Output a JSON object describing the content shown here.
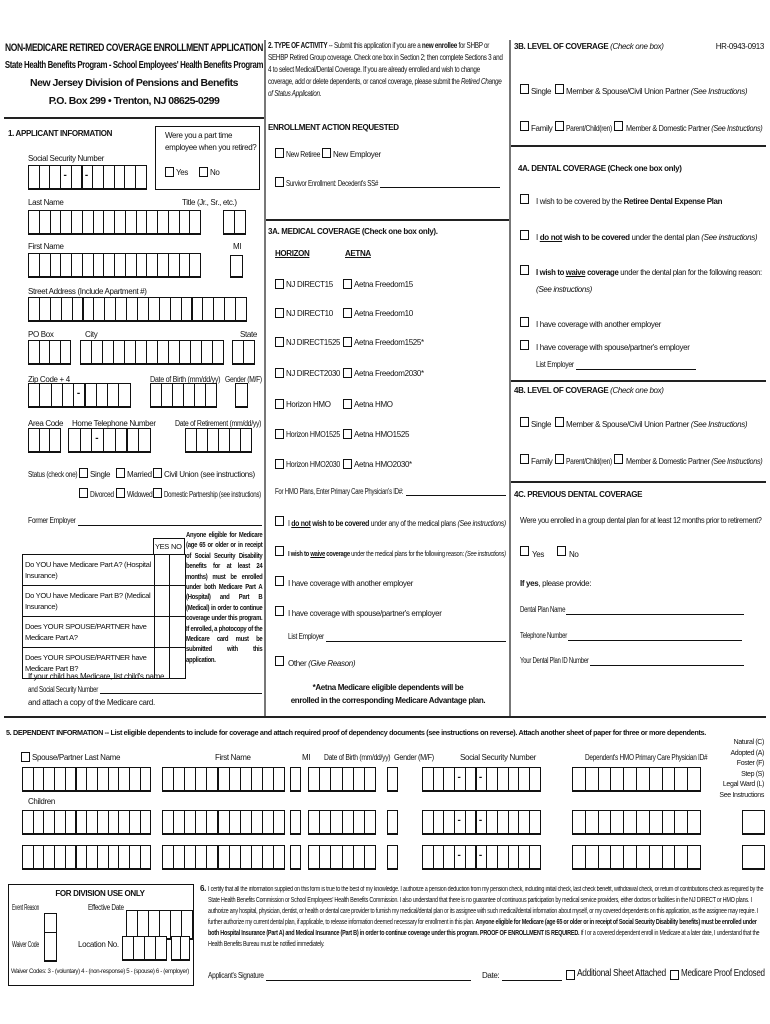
{
  "header": {
    "title": "NON-MEDICARE RETIRED COVERAGE ENROLLMENT APPLICATION",
    "program": "State Health Benefits Program - School Employees' Health Benefits Program",
    "division": "New Jersey Division of Pensions and Benefits",
    "address": "P.O. Box 299 • Trenton, NJ 08625-0299",
    "form_code": "HR-0943-0913"
  },
  "s1": {
    "title": "1. APPLICANT INFORMATION",
    "part_time_q": "Were you a part time employee when you retired?",
    "yes": "Yes",
    "no": "No",
    "ssn": "Social Security Number",
    "last_name": "Last Name",
    "title_field": "Title (Jr., Sr., etc.)",
    "first_name": "First Name",
    "mi": "MI",
    "street": "Street Address (Include Apartment #)",
    "po_box": "PO Box",
    "city": "City",
    "state": "State",
    "zip": "Zip Code + 4",
    "dob": "Date of Birth (mm/dd/yy)",
    "gender": "Gender (M/F)",
    "area_code": "Area Code",
    "phone": "Home Telephone Number",
    "retirement": "Date of Retirement (mm/dd/yy)",
    "status": "Status (check one)",
    "status_options": [
      "Single",
      "Married",
      "Civil Union (see instructions)",
      "Divorced",
      "Widowed",
      "Domestic Partnership (see instructions)"
    ],
    "former_employer": "Former Employer",
    "medicare_yes": "YES",
    "medicare_no": "NO",
    "medicare_questions": [
      "Do YOU have Medicare Part A? (Hospital Insurance)",
      "Do YOU have Medicare Part B? (Medical Insurance)",
      "Does YOUR SPOUSE/PARTNER have Medicare Part A?",
      "Does YOUR SPOUSE/PARTNER have Medicare Part B?"
    ],
    "medicare_note": "Anyone eligible for Medicare (age 65 or older or in receipt of Social Security Disability benefits for at least 24 months) must be enrolled under both Medicare Part A (Hospital) and Part B (Medical) in order to continue coverage under this program. If enrolled, a photocopy of the Medicare card must be submitted with this application.",
    "child_1": "If your child has Medicare, list child's name",
    "child_2": "and Social Security Number",
    "child_3": "and attach a copy of the Medicare card."
  },
  "s2": {
    "title": "2. TYPE OF ACTIVITY",
    "text_1": " -- Submit this application if you are a ",
    "bold_1": "new enrollee",
    "text_2": " for SHBP or SEHBP Retired Group coverage. Check one box in Section 2; then complete Sections 3 and 4 to select Medical/Dental Coverage. If you are already enrolled and wish to change coverage, add or delete dependents, or cancel coverage, please submit the ",
    "italic_1": "Retired Change of Status Application.",
    "action_title": "ENROLLMENT ACTION REQUESTED",
    "new_retiree": "New Retiree",
    "new_employer": "New Employer",
    "survivor": "Survivor Enrollment:  Decedent's SS#"
  },
  "s3a": {
    "title": "3A. MEDICAL COVERAGE (Check one box only).",
    "horizon": "HORIZON",
    "aetna": "AETNA",
    "horizon_plans": [
      "NJ DIRECT15",
      "NJ DIRECT10",
      "NJ DIRECT1525",
      "NJ DIRECT2030",
      "Horizon HMO",
      "Horizon HMO1525",
      "Horizon HMO2030"
    ],
    "aetna_plans": [
      "Aetna Freedom15",
      "Aetna Freedom10",
      "Aetna Freedom1525*",
      "Aetna Freedom2030*",
      "Aetna HMO",
      "Aetna HMO1525",
      "Aetna HMO2030*"
    ],
    "hmo_pcp": "For HMO Plans, Enter Primary Care Physician's ID#:",
    "not_i": "I ",
    "not_u": "do not",
    "not_b": " wish to be covered",
    "not_t": " under any of the medical plans ",
    "not_it": "(See instructions)",
    "waive_b": "I wish to ",
    "waive_u": "waive",
    "waive_b2": " coverage",
    "waive_t": " under the medical plans for the following reason: ",
    "waive_it": "(See instructions)",
    "another": "I have coverage with another employer",
    "spouse": "I have coverage with spouse/partner's employer",
    "list_employer": "List Employer",
    "other": "Other ",
    "other_it": "(Give Reason)",
    "aetna_note_1": "*Aetna Medicare eligible dependents will be",
    "aetna_note_2": "enrolled in the corresponding Medicare Advantage plan."
  },
  "s3b": {
    "title": "3B. LEVEL OF COVERAGE ",
    "title_it": "(Check one box)",
    "single": "Single",
    "member_spouse": "Member & Spouse/Civil Union Partner ",
    "see": "(See Instructions)",
    "family": "Family",
    "parent_child": "Parent/Child(ren)",
    "member_domestic": "Member & Domestic Partner "
  },
  "s4a": {
    "title": "4A. DENTAL COVERAGE  (Check one box only)",
    "covered_t": "I wish to be covered by the ",
    "covered_b": "Retiree Dental Expense Plan",
    "not_i": "I ",
    "not_u": "do not",
    "not_b": " wish to be covered",
    "not_t": " under the dental plan ",
    "not_it": "(See instructions)",
    "waive_b": "I wish to ",
    "waive_u": "waive",
    "waive_b2": " coverage",
    "waive_t": " under the dental plan for the following reason:",
    "waive_it": "(See instructions)",
    "another": "I have coverage with another employer",
    "spouse": "I have coverage with spouse/partner's employer",
    "list_employer": "List Employer"
  },
  "s4b": {
    "title": "4B. LEVEL OF COVERAGE ",
    "title_it": "(Check one box)",
    "single": "Single",
    "member_spouse": "Member & Spouse/Civil Union Partner ",
    "see": "(See Instructions)",
    "family": "Family",
    "parent_child": "Parent/Child(ren)",
    "member_domestic": "Member & Domestic Partner "
  },
  "s4c": {
    "title": "4C. PREVIOUS DENTAL COVERAGE",
    "question": "Were you enrolled in a group dental plan for at least 12 months prior to retirement?",
    "yes": "Yes",
    "no": "No",
    "if_yes_b": "If yes",
    "if_yes_t": ", please provide:",
    "plan_name": "Dental Plan Name",
    "telephone": "Telephone Number",
    "plan_id": "Your Dental Plan ID Number"
  },
  "s5": {
    "title_b": "5. DEPENDENT INFORMATION",
    "title_t": " -- List eligible dependents to include for coverage and attach required proof of dependency documents (see instructions on reverse). Attach another sheet of paper for three or more dependents.",
    "spouse_last": "Spouse/Partner Last Name",
    "first_name": "First Name",
    "mi": "MI",
    "dob": "Date of Birth (mm/dd/yy)",
    "gender": "Gender (M/F)",
    "ssn": "Social Security Number",
    "hmo": "Dependent's HMO Primary Care Physician ID#",
    "children": "Children",
    "relation_codes": [
      "Natural (C)",
      "Adopted (A)",
      "Foster (F)",
      "Step (S)",
      "Legal Ward (L)",
      "See Instructions"
    ]
  },
  "division": {
    "title": "FOR DIVISION USE ONLY",
    "event_reason": "Event Reason",
    "effective_date": "Effective Date",
    "waiver_code": "Waiver Code",
    "location_no": "Location No.",
    "waiver_codes": "Waiver Codes: 3 - (voluntary)  4 - (non-response)  5 - (spouse)  6 - (employer)"
  },
  "s6": {
    "num": "6.",
    "text": "I certify that all the information supplied on this form is true to the best of my knowledge. I authorize a pension deduction from my pension check, including initial check, last check benefit, withdrawal check, or return of contributions check as required by the State Health Benefits Commission or School Employees' Health Benefits Commission. I also understand that there is no guarantee of continuous participation by medical service providers, either doctors or facilities in the NJ DIRECT or HMO plans. I authorize any hospital, physician, dentist, or health or dental care provider to furnish my medical/dental plan or its assignee with such medical/dental information about myself, or my covered dependents on this application, as the assignee may require. I further authorize my current dental plan, if applicable, to release information deemed necessary for enrollment in this plan. ",
    "bold": "Anyone eligible for Medicare (age 65 or older or in receipt of Social Security Disability benefits) must be enrolled under both Hospital Insurance (Part A) and Medical Insurance (Part B) in order to continue coverage under this program. PROOF OF ENROLLMENT IS REQUIRED.",
    "text_2": " If I or a covered dependent enroll in Medicare at a later date, I understand that the Health Benefits Bureau must be notified immediately.",
    "signature": "Applicant's Signature",
    "date": "Date:",
    "additional_sheet": "Additional Sheet Attached",
    "medicare_proof": "Medicare Proof Enclosed"
  }
}
